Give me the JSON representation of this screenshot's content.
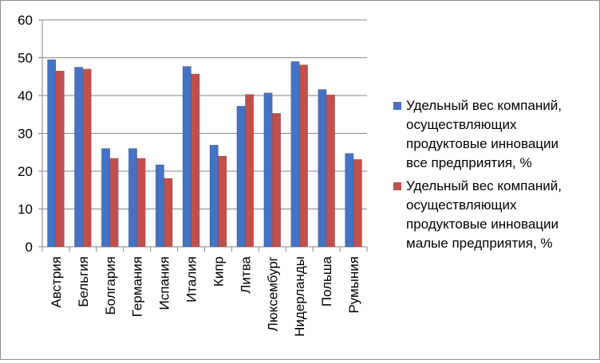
{
  "chart_data": {
    "type": "bar",
    "categories": [
      "Австрия",
      "Бельгия",
      "Болгария",
      "Германия",
      "Испания",
      "Италия",
      "Кипр",
      "Литва",
      "Люксембург",
      "Нидерланды",
      "Польша",
      "Румыния"
    ],
    "series": [
      {
        "name": "Удельный вес компаний, осуществляющих продуктовые инновации все предприятия, %",
        "name_lines": [
          "Удельный вес компаний,",
          "осуществляющих",
          "продуктовые инновации",
          "все предприятия, %"
        ],
        "color": "#4472C4",
        "values": [
          49.5,
          47.5,
          26,
          26,
          21.7,
          47.7,
          26.9,
          37.2,
          40.7,
          49,
          41.6,
          24.7
        ]
      },
      {
        "name": "Удельный вес компаний, осуществляющих продуктовые инновации малые предприятия, %",
        "name_lines": [
          "Удельный вес компаний,",
          "осуществляющих",
          "продуктовые инновации",
          "малые предприятия, %"
        ],
        "color": "#C0504D",
        "values": [
          46.5,
          47,
          23.4,
          23.4,
          18.1,
          45.7,
          24,
          40.3,
          35.3,
          48.1,
          40.2,
          23.1
        ]
      }
    ],
    "yticks": [
      "0",
      "10",
      "20",
      "30",
      "40",
      "50",
      "60"
    ],
    "ylim": [
      0,
      60
    ],
    "grid": true,
    "legend_position": "right"
  }
}
